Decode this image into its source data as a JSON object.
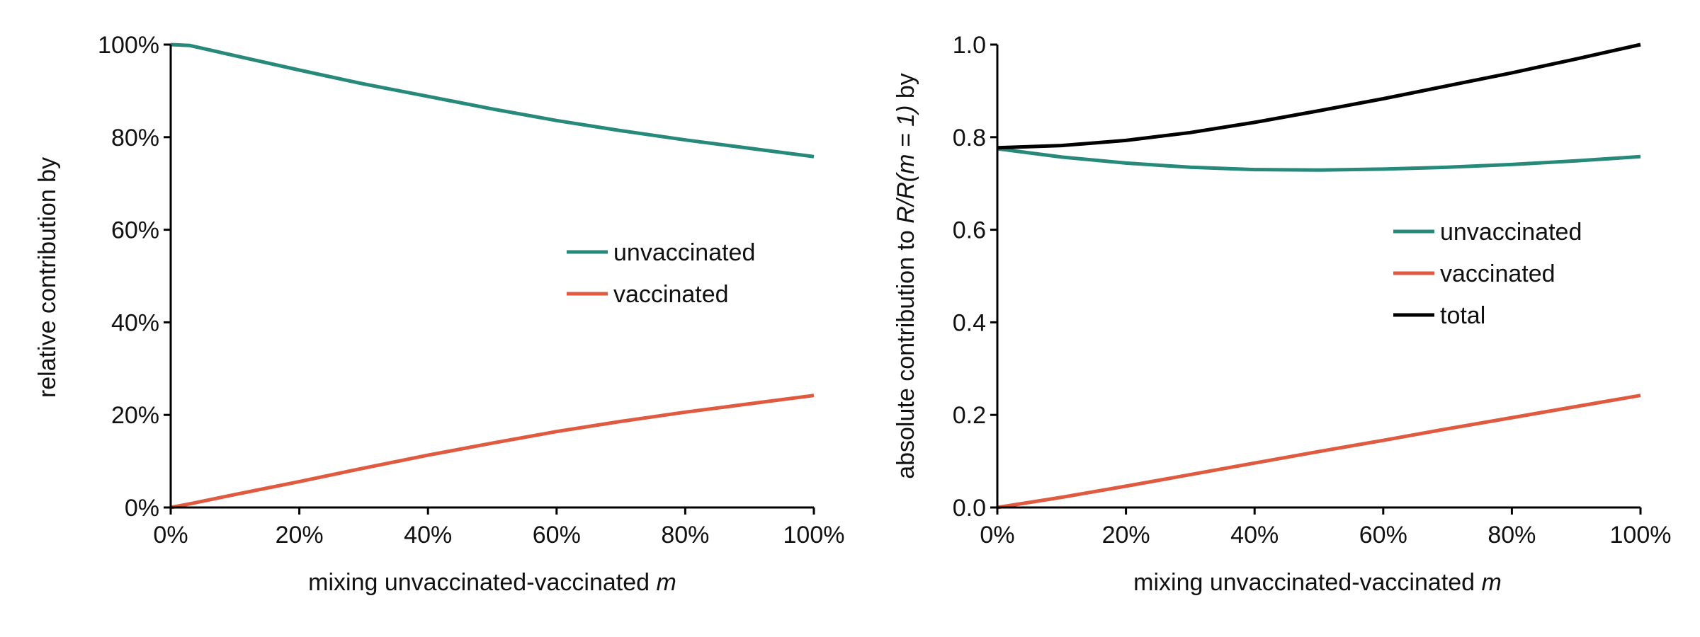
{
  "chart_data": [
    {
      "type": "line",
      "xlabel": "mixing unvaccinated-vaccinated",
      "xlabel_symbol": "m",
      "ylabel": "relative contribution by",
      "xlim": [
        0,
        100
      ],
      "ylim": [
        0,
        100
      ],
      "x_ticks": [
        0,
        20,
        40,
        60,
        80,
        100
      ],
      "x_tick_labels": [
        "0%",
        "20%",
        "40%",
        "60%",
        "80%",
        "100%"
      ],
      "y_ticks": [
        0,
        20,
        40,
        60,
        80,
        100
      ],
      "y_tick_labels": [
        "0%",
        "20%",
        "40%",
        "60%",
        "80%",
        "100%"
      ],
      "grid": false,
      "legend_position": "right-center",
      "x": [
        0,
        3,
        10,
        20,
        30,
        40,
        50,
        60,
        70,
        80,
        90,
        100
      ],
      "series": [
        {
          "name": "unvaccinated",
          "color": "#26897a",
          "values": [
            100,
            99.8,
            97.6,
            94.5,
            91.5,
            88.8,
            86.1,
            83.6,
            81.4,
            79.4,
            77.6,
            75.8
          ]
        },
        {
          "name": "vaccinated",
          "color": "#e05a40",
          "values": [
            0,
            0.8,
            2.8,
            5.6,
            8.5,
            11.3,
            13.9,
            16.4,
            18.6,
            20.6,
            22.4,
            24.2
          ]
        }
      ]
    },
    {
      "type": "line",
      "xlabel": "mixing unvaccinated-vaccinated",
      "xlabel_symbol": "m",
      "ylabel_prefix": "absolute contribution to",
      "ylabel_math": "R/R(m = 1)",
      "ylabel_suffix": "by",
      "xlim": [
        0,
        100
      ],
      "ylim": [
        0,
        1
      ],
      "x_ticks": [
        0,
        20,
        40,
        60,
        80,
        100
      ],
      "x_tick_labels": [
        "0%",
        "20%",
        "40%",
        "60%",
        "80%",
        "100%"
      ],
      "y_ticks": [
        0,
        0.2,
        0.4,
        0.6,
        0.8,
        1.0
      ],
      "y_tick_labels": [
        "0.0",
        "0.2",
        "0.4",
        "0.6",
        "0.8",
        "1.0"
      ],
      "grid": false,
      "legend_position": "right-center",
      "x": [
        0,
        10,
        20,
        30,
        40,
        50,
        60,
        70,
        80,
        90,
        100
      ],
      "series": [
        {
          "name": "unvaccinated",
          "color": "#26897a",
          "values": [
            0.775,
            0.757,
            0.744,
            0.735,
            0.73,
            0.729,
            0.731,
            0.735,
            0.741,
            0.749,
            0.758
          ]
        },
        {
          "name": "vaccinated",
          "color": "#e05a40",
          "values": [
            0,
            0.022,
            0.046,
            0.071,
            0.096,
            0.121,
            0.145,
            0.17,
            0.194,
            0.218,
            0.242
          ]
        },
        {
          "name": "total",
          "color": "#000000",
          "values": [
            0.777,
            0.782,
            0.793,
            0.81,
            0.832,
            0.857,
            0.883,
            0.911,
            0.939,
            0.969,
            1.0
          ]
        }
      ]
    }
  ]
}
